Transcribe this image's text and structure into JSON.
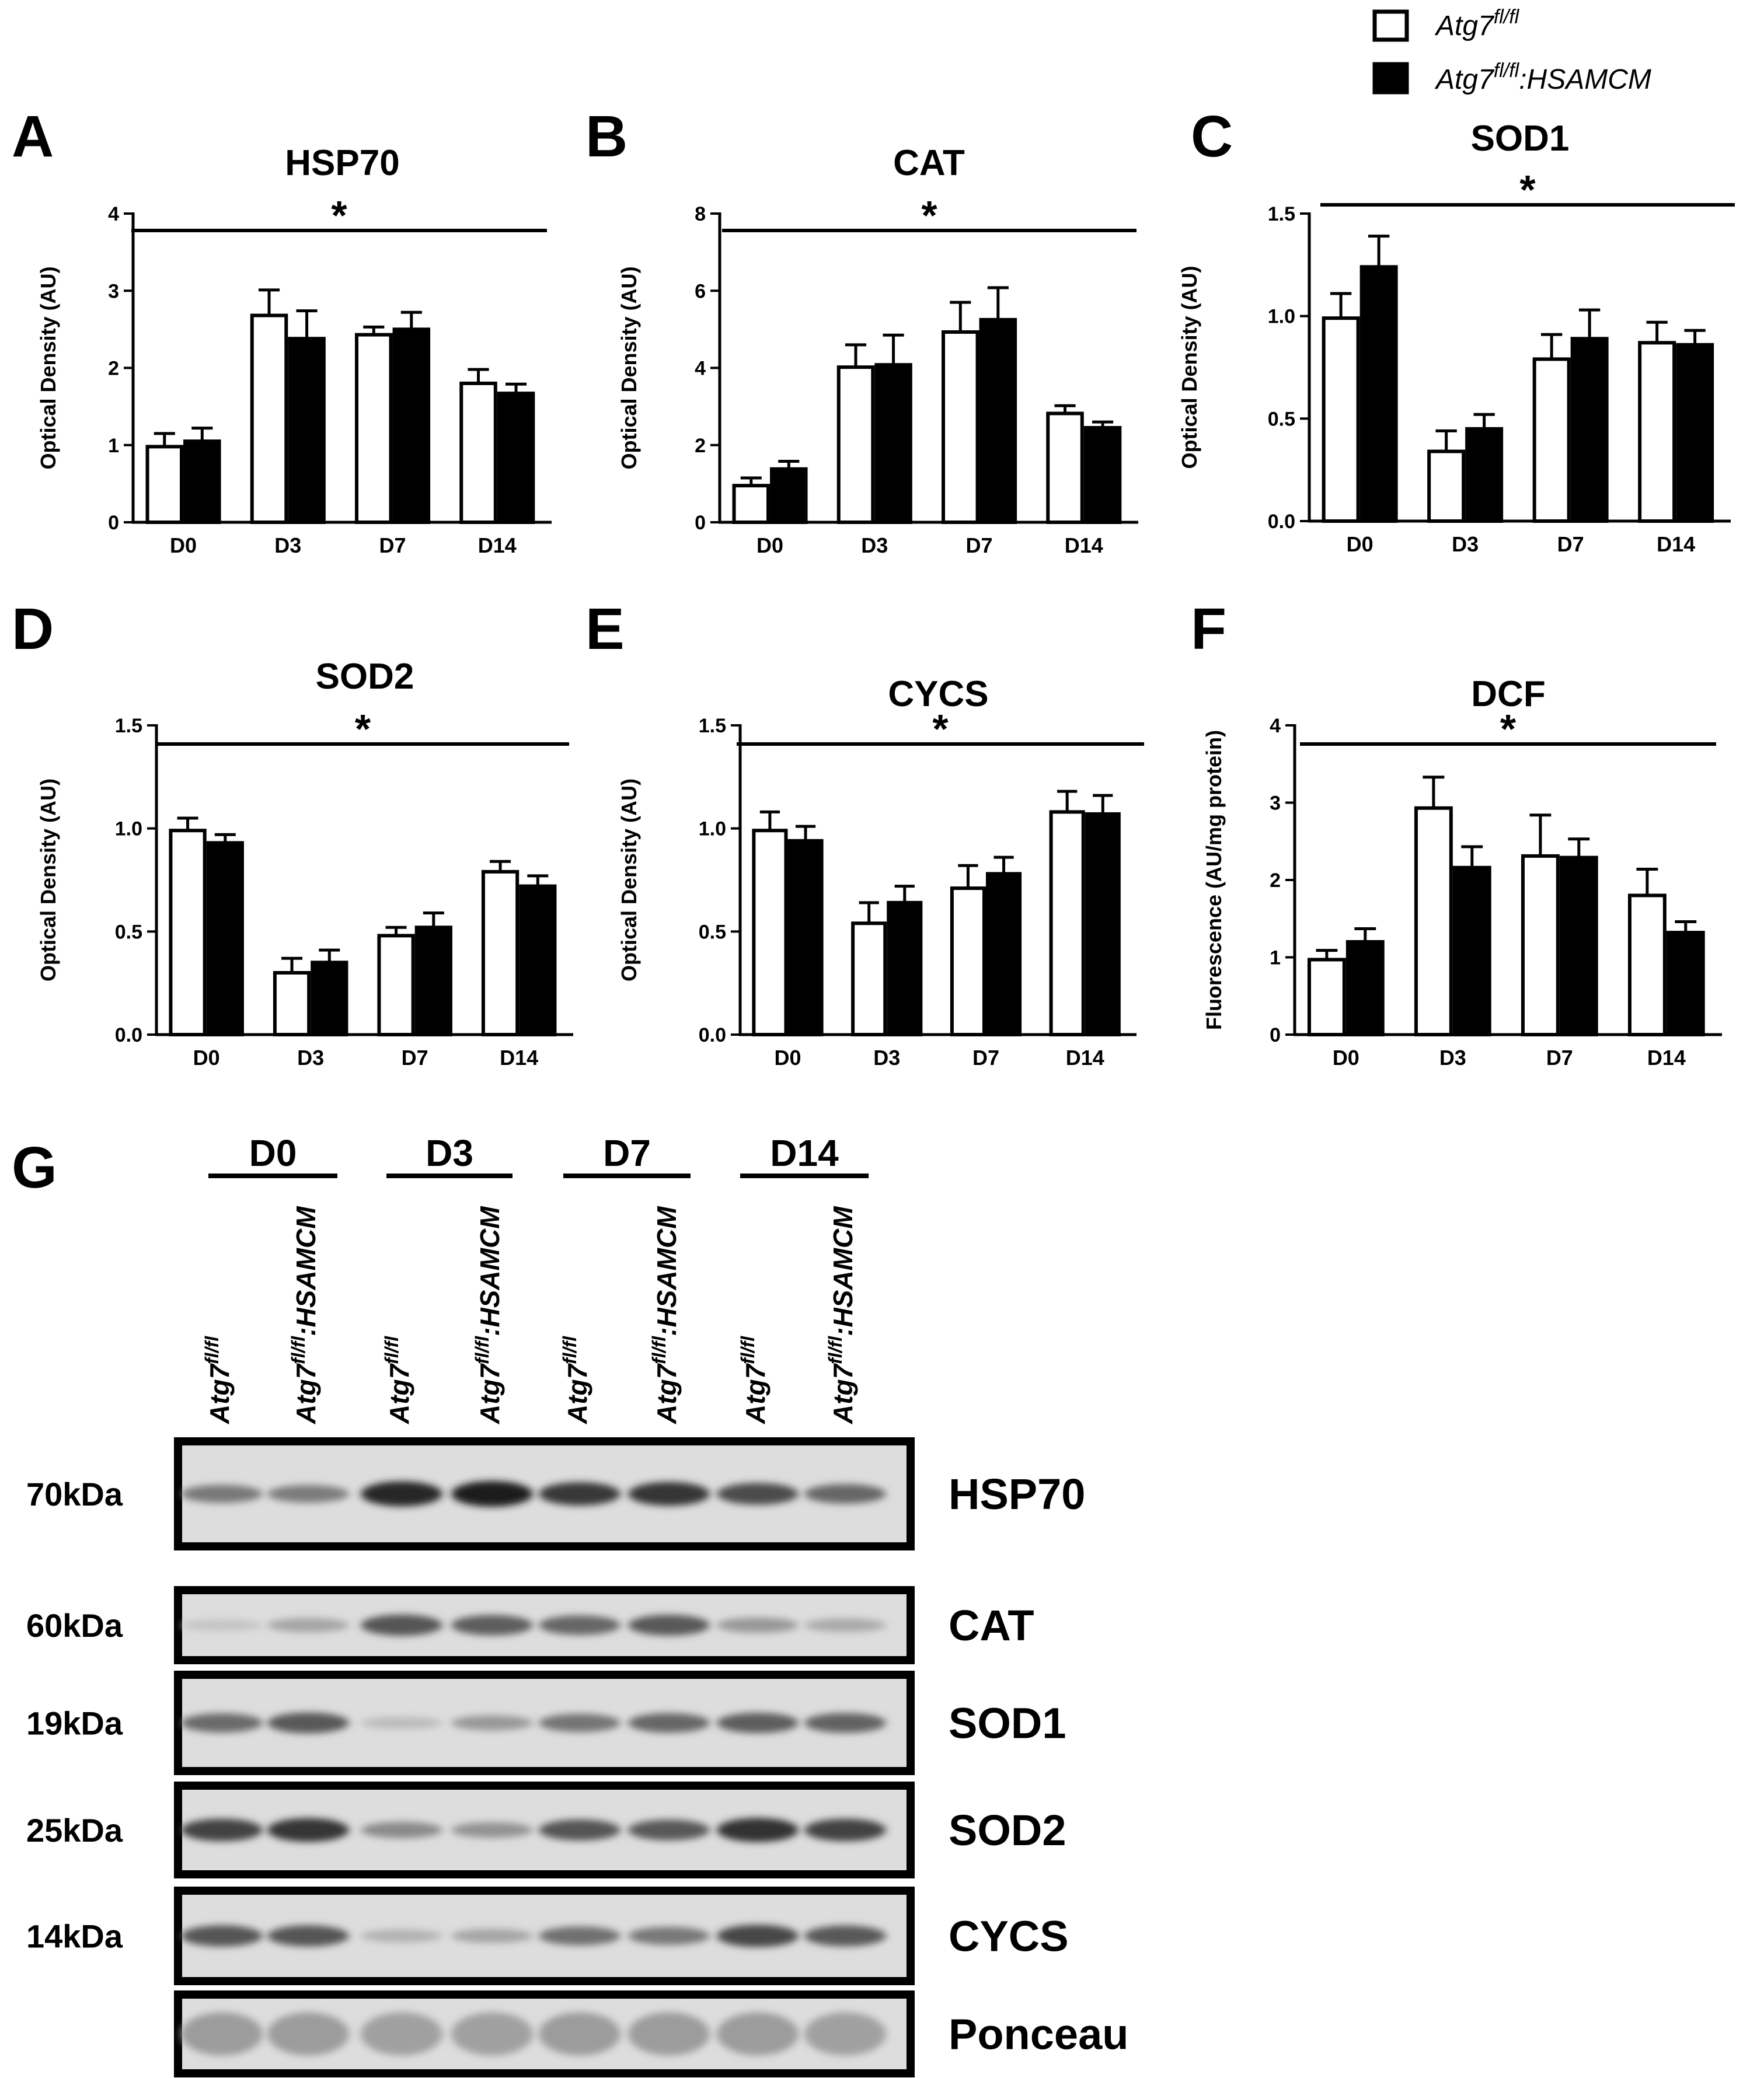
{
  "legend": {
    "items": [
      {
        "base": "Atg7",
        "sup": "fl/fl",
        "suffix": "",
        "fill": "#ffffff"
      },
      {
        "base": "Atg7",
        "sup": "fl/fl",
        "suffix": ":HSAMCM",
        "fill": "#000000"
      }
    ]
  },
  "significance_marker": "*",
  "chart_data": [
    {
      "panel": "A",
      "type": "bar",
      "title": "HSP70",
      "ylabel": "Optical Density (AU)",
      "categories": [
        "D0",
        "D3",
        "D7",
        "D14"
      ],
      "ylim": [
        0,
        4
      ],
      "yticks": [
        "0",
        "1",
        "2",
        "3",
        "4"
      ],
      "series": [
        {
          "values": [
            0.98,
            2.68,
            2.43,
            1.8
          ],
          "errors": [
            0.17,
            0.33,
            0.1,
            0.18
          ]
        },
        {
          "values": [
            1.05,
            2.38,
            2.5,
            1.67
          ],
          "errors": [
            0.17,
            0.36,
            0.22,
            0.12
          ]
        }
      ]
    },
    {
      "panel": "B",
      "type": "bar",
      "title": "CAT",
      "ylabel": "Optical Density (AU)",
      "categories": [
        "D0",
        "D3",
        "D7",
        "D14"
      ],
      "ylim": [
        0,
        8
      ],
      "yticks": [
        "0",
        "2",
        "4",
        "6",
        "8"
      ],
      "series": [
        {
          "values": [
            0.95,
            4.02,
            4.93,
            2.82
          ],
          "errors": [
            0.2,
            0.58,
            0.77,
            0.2
          ]
        },
        {
          "values": [
            1.38,
            4.08,
            5.25,
            2.45
          ],
          "errors": [
            0.2,
            0.77,
            0.83,
            0.15
          ]
        }
      ]
    },
    {
      "panel": "C",
      "type": "bar",
      "title": "SOD1",
      "ylabel": "Optical Density (AU)",
      "categories": [
        "D0",
        "D3",
        "D7",
        "D14"
      ],
      "ylim": [
        0,
        1.5
      ],
      "yticks": [
        "0.0",
        "0.5",
        "1.0",
        "1.5"
      ],
      "series": [
        {
          "values": [
            0.99,
            0.34,
            0.79,
            0.87
          ],
          "errors": [
            0.12,
            0.1,
            0.12,
            0.1
          ]
        },
        {
          "values": [
            1.24,
            0.45,
            0.89,
            0.86
          ],
          "errors": [
            0.15,
            0.07,
            0.14,
            0.07
          ]
        }
      ]
    },
    {
      "panel": "D",
      "type": "bar",
      "title": "SOD2",
      "ylabel": "Optical Density (AU)",
      "categories": [
        "D0",
        "D3",
        "D7",
        "D14"
      ],
      "ylim": [
        0,
        1.5
      ],
      "yticks": [
        "0.0",
        "0.5",
        "1.0",
        "1.5"
      ],
      "series": [
        {
          "values": [
            0.99,
            0.3,
            0.48,
            0.79
          ],
          "errors": [
            0.06,
            0.07,
            0.04,
            0.05
          ]
        },
        {
          "values": [
            0.93,
            0.35,
            0.52,
            0.72
          ],
          "errors": [
            0.04,
            0.06,
            0.07,
            0.05
          ]
        }
      ]
    },
    {
      "panel": "E",
      "type": "bar",
      "title": "CYCS",
      "ylabel": "Optical Density (AU)",
      "categories": [
        "D0",
        "D3",
        "D7",
        "D14"
      ],
      "ylim": [
        0,
        1.5
      ],
      "yticks": [
        "0.0",
        "0.5",
        "1.0",
        "1.5"
      ],
      "series": [
        {
          "values": [
            0.99,
            0.54,
            0.71,
            1.08
          ],
          "errors": [
            0.09,
            0.1,
            0.11,
            0.1
          ]
        },
        {
          "values": [
            0.94,
            0.64,
            0.78,
            1.07
          ],
          "errors": [
            0.07,
            0.08,
            0.08,
            0.09
          ]
        }
      ]
    },
    {
      "panel": "F",
      "type": "bar",
      "title": "DCF",
      "ylabel": "Fluorescence (AU/mg protein)",
      "categories": [
        "D0",
        "D3",
        "D7",
        "D14"
      ],
      "ylim": [
        0,
        4
      ],
      "yticks": [
        "0",
        "1",
        "2",
        "3",
        "4"
      ],
      "series": [
        {
          "values": [
            0.97,
            2.93,
            2.31,
            1.8
          ],
          "errors": [
            0.12,
            0.4,
            0.53,
            0.34
          ]
        },
        {
          "values": [
            1.2,
            2.16,
            2.29,
            1.32
          ],
          "errors": [
            0.17,
            0.27,
            0.24,
            0.14
          ]
        }
      ]
    }
  ],
  "blot": {
    "panel": "G",
    "groups": [
      "D0",
      "D3",
      "D7",
      "D14"
    ],
    "lane_label": {
      "base": "Atg7",
      "sup": "fl/fl",
      "suffix": ":HSAMCM"
    },
    "rows": [
      {
        "protein": "HSP70",
        "mw": "70kDa",
        "intensity": [
          0.5,
          0.48,
          0.95,
          1.0,
          0.85,
          0.88,
          0.75,
          0.6
        ]
      },
      {
        "protein": "CAT",
        "mw": "60kDa",
        "intensity": [
          0.08,
          0.25,
          0.7,
          0.65,
          0.6,
          0.68,
          0.32,
          0.22
        ]
      },
      {
        "protein": "SOD1",
        "mw": "19kDa",
        "intensity": [
          0.58,
          0.68,
          0.12,
          0.32,
          0.52,
          0.6,
          0.65,
          0.62
        ]
      },
      {
        "protein": "SOD2",
        "mw": "25kDa",
        "intensity": [
          0.8,
          0.88,
          0.4,
          0.35,
          0.7,
          0.68,
          0.9,
          0.8
        ]
      },
      {
        "protein": "CYCS",
        "mw": "14kDa",
        "intensity": [
          0.7,
          0.7,
          0.18,
          0.25,
          0.55,
          0.5,
          0.78,
          0.68
        ]
      },
      {
        "protein": "Ponceau",
        "mw": "",
        "intensity": [
          0.3,
          0.3,
          0.28,
          0.28,
          0.3,
          0.3,
          0.3,
          0.28
        ]
      }
    ]
  }
}
